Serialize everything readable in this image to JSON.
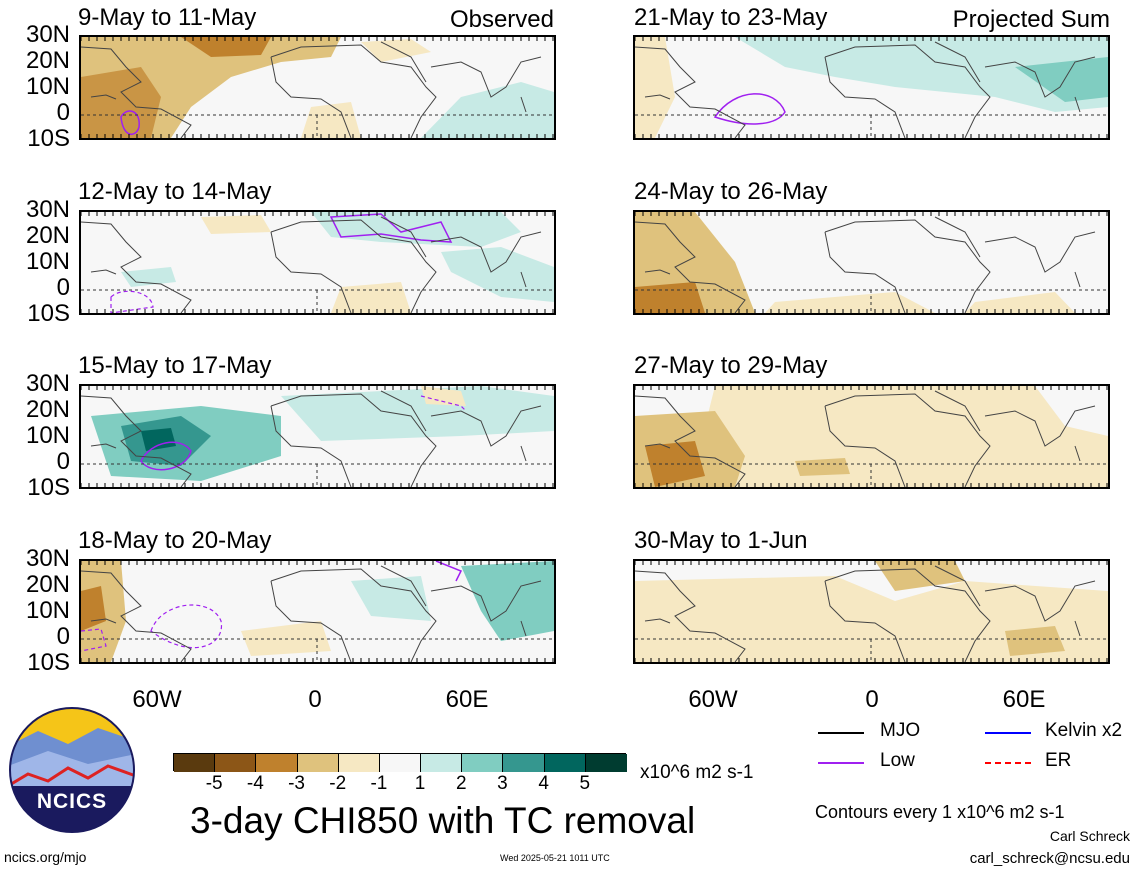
{
  "panels_left": [
    {
      "date": "9-May to 11-May",
      "tag": "Observed"
    },
    {
      "date": "12-May to 14-May",
      "tag": ""
    },
    {
      "date": "15-May to 17-May",
      "tag": ""
    },
    {
      "date": "18-May to 20-May",
      "tag": ""
    }
  ],
  "panels_right": [
    {
      "date": "21-May to 23-May",
      "tag": "Projected Sum"
    },
    {
      "date": "24-May to 26-May",
      "tag": ""
    },
    {
      "date": "27-May to 29-May",
      "tag": ""
    },
    {
      "date": "30-May to 1-Jun",
      "tag": ""
    }
  ],
  "lat_labels": [
    "30N",
    "20N",
    "10N",
    "0",
    "10S"
  ],
  "lon_labels": [
    "60W",
    "0",
    "60E"
  ],
  "colorbar": {
    "ticks": [
      "-5",
      "-4",
      "-3",
      "-2",
      "-1",
      "1",
      "2",
      "3",
      "4",
      "5"
    ],
    "units": "x10^6 m2 s-1",
    "colors": [
      "#5a3a0e",
      "#8c5617",
      "#bf812d",
      "#dfc27d",
      "#f6e8c3",
      "#f7f7f7",
      "#c7eae5",
      "#80cdc1",
      "#35978f",
      "#01665e",
      "#003c30"
    ]
  },
  "main_title": "3-day CHI850 with TC removal",
  "legend": [
    {
      "label": "MJO",
      "color": "#000000",
      "style": "solid"
    },
    {
      "label": "Kelvin x2",
      "color": "#0000ff",
      "style": "solid"
    },
    {
      "label": "Low",
      "color": "#a020f0",
      "style": "solid"
    },
    {
      "label": "ER",
      "color": "#ff0000",
      "style": "dashed"
    }
  ],
  "contour_note": "Contours every 1 x10^6 m2 s-1",
  "author": "Carl Schreck",
  "email": "carl_schreck@ncsu.edu",
  "site": "ncics.org/mjo",
  "timestamp": "Wed 2025-05-21 1011 UTC",
  "logo_text": "NCICS"
}
